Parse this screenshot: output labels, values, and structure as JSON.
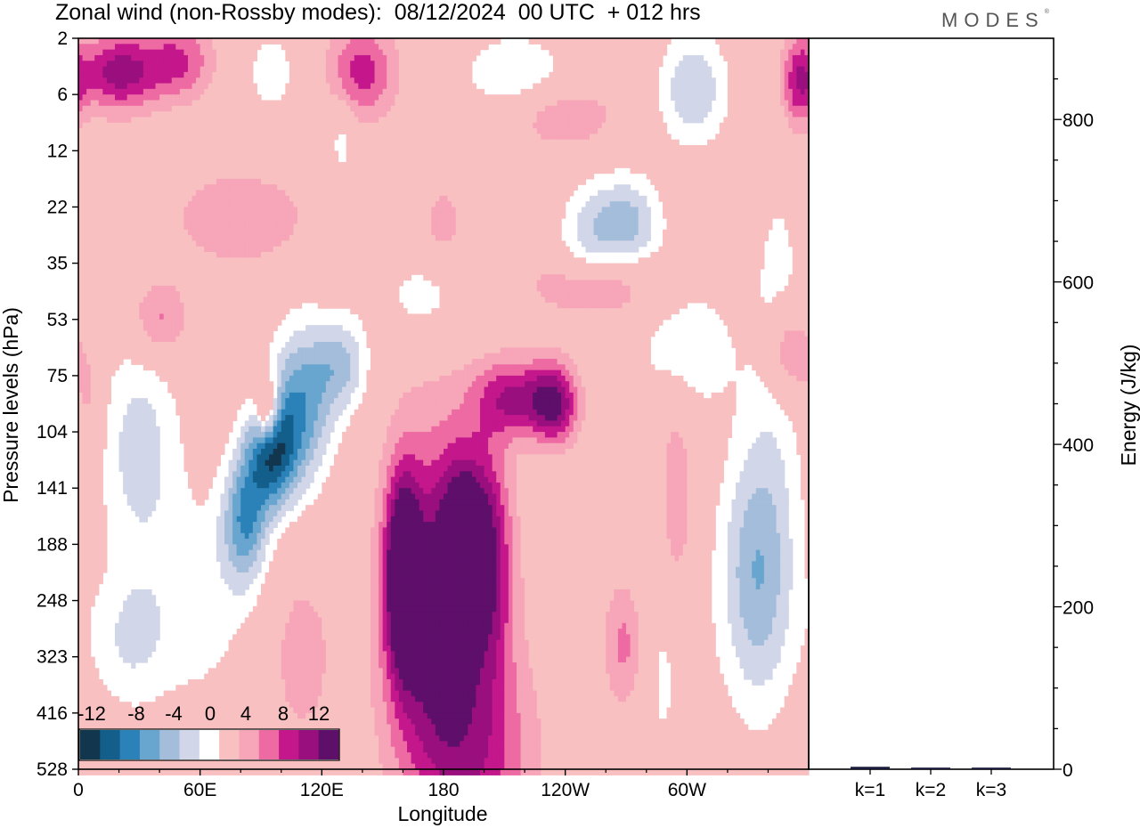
{
  "header": {
    "title": "Zonal wind (non-Rossby modes):  08/12/2024  00 UTC  + 012 hrs",
    "brand": "MODES"
  },
  "colors": {
    "neg": [
      "#13364f",
      "#135e8a",
      "#2b82b8",
      "#68a5cf",
      "#a3bdda",
      "#d2d6e9"
    ],
    "zero": "#ffffff",
    "pos": [
      "#f8c0c0",
      "#f7a5b8",
      "#ee6aa3",
      "#c5178c",
      "#9a0f7e",
      "#5e0f6a"
    ],
    "frame": "#000000"
  },
  "chart_data": [
    {
      "type": "heatmap",
      "title": "Zonal wind (non-Rossby modes):  08/12/2024  00 UTC  + 012 hrs",
      "xlabel": "Longitude",
      "ylabel": "Pressure levels (hPa)",
      "x_ticks": [
        "0",
        "60E",
        "120E",
        "180",
        "120W",
        "60W"
      ],
      "x_tick_values": [
        0,
        60,
        120,
        180,
        240,
        300
      ],
      "xlim": [
        0,
        360
      ],
      "y_ticks": [
        "2",
        "6",
        "12",
        "22",
        "35",
        "53",
        "75",
        "104",
        "141",
        "188",
        "248",
        "323",
        "416",
        "528"
      ],
      "colorbar": {
        "labels": [
          "-12",
          "-8",
          "-4",
          "0",
          "4",
          "8",
          "12"
        ],
        "levels": [
          -14,
          -12,
          -10,
          -8,
          -6,
          -4,
          -2,
          2,
          4,
          6,
          8,
          10,
          12,
          14
        ]
      },
      "features": [
        {
          "lon": 95,
          "lev": 7.4,
          "a": -12,
          "sx": 9,
          "sy": 0.7
        },
        {
          "lon": 110,
          "lev": 6.5,
          "a": -9,
          "sx": 11,
          "sy": 1.0
        },
        {
          "lon": 82,
          "lev": 8.6,
          "a": -9,
          "sx": 8,
          "sy": 0.8
        },
        {
          "lon": 130,
          "lev": 5.8,
          "a": -6,
          "sx": 9,
          "sy": 0.6
        },
        {
          "lon": 30,
          "lev": 7.3,
          "a": -5,
          "sx": 14,
          "sy": 1.4
        },
        {
          "lon": 25,
          "lev": 10.7,
          "a": -4,
          "sx": 14,
          "sy": 0.9
        },
        {
          "lon": 60,
          "lev": 10.0,
          "a": -3,
          "sx": 18,
          "sy": 1.4
        },
        {
          "lon": 335,
          "lev": 9.5,
          "a": -8,
          "sx": 13,
          "sy": 1.7
        },
        {
          "lon": 345,
          "lev": 5.0,
          "a": -3,
          "sx": 10,
          "sy": 2.0
        },
        {
          "lon": 303,
          "lev": 0.9,
          "a": -6,
          "sx": 12,
          "sy": 0.7
        },
        {
          "lon": 270,
          "lev": 3.3,
          "a": -7,
          "sx": 12,
          "sy": 0.6
        },
        {
          "lon": 250,
          "lev": 3.6,
          "a": -4,
          "sx": 10,
          "sy": 0.7
        },
        {
          "lon": 95,
          "lev": 0.6,
          "a": -3,
          "sx": 10,
          "sy": 0.6
        },
        {
          "lon": 215,
          "lev": 0.6,
          "a": -4,
          "sx": 18,
          "sy": 0.5
        },
        {
          "lon": 170,
          "lev": 4.6,
          "a": -3,
          "sx": 16,
          "sy": 0.6
        },
        {
          "lon": 300,
          "lev": 5.5,
          "a": -4,
          "sx": 16,
          "sy": 0.8
        },
        {
          "lon": 285,
          "lev": 11.0,
          "a": -3,
          "sx": 14,
          "sy": 1.5
        },
        {
          "lon": 130,
          "lev": 1.8,
          "a": -3,
          "sx": 5,
          "sy": 0.6
        },
        {
          "lon": 160,
          "lev": 9.5,
          "a": 13,
          "sx": 6,
          "sy": 1.2
        },
        {
          "lon": 175,
          "lev": 9.8,
          "a": 8,
          "sx": 16,
          "sy": 2.2
        },
        {
          "lon": 190,
          "lev": 8.8,
          "a": 9,
          "sx": 8,
          "sy": 1.0
        },
        {
          "lon": 203,
          "lev": 9.2,
          "a": 7,
          "sx": 8,
          "sy": 1.4
        },
        {
          "lon": 185,
          "lev": 11.5,
          "a": 5,
          "sx": 22,
          "sy": 1.8
        },
        {
          "lon": 215,
          "lev": 6.4,
          "a": 8,
          "sx": 14,
          "sy": 0.5
        },
        {
          "lon": 235,
          "lev": 6.5,
          "a": 9,
          "sx": 8,
          "sy": 0.5
        },
        {
          "lon": 270,
          "lev": 10.8,
          "a": 6,
          "sx": 8,
          "sy": 0.9
        },
        {
          "lon": 295,
          "lev": 8.3,
          "a": 4,
          "sx": 6,
          "sy": 1.5
        },
        {
          "lon": 350,
          "lev": 5.6,
          "a": 6,
          "sx": 8,
          "sy": 0.6
        },
        {
          "lon": 20,
          "lev": 0.6,
          "a": 9,
          "sx": 14,
          "sy": 0.5
        },
        {
          "lon": 50,
          "lev": 0.4,
          "a": 6,
          "sx": 12,
          "sy": 0.5
        },
        {
          "lon": 140,
          "lev": 0.6,
          "a": 7,
          "sx": 12,
          "sy": 0.6
        },
        {
          "lon": 355,
          "lev": 0.8,
          "a": 7,
          "sx": 6,
          "sy": 0.6
        },
        {
          "lon": 93,
          "lev": 6.6,
          "a": 9,
          "sx": 4,
          "sy": 0.4
        },
        {
          "lon": 40,
          "lev": 5.0,
          "a": 5,
          "sx": 10,
          "sy": 0.5
        },
        {
          "lon": 80,
          "lev": 3.2,
          "a": 4,
          "sx": 24,
          "sy": 0.6
        },
        {
          "lon": 255,
          "lev": 4.4,
          "a": 5,
          "sx": 22,
          "sy": 0.4
        },
        {
          "lon": 200,
          "lev": 13.0,
          "a": 4,
          "sx": 20,
          "sy": 1.2
        },
        {
          "lon": 240,
          "lev": 1.4,
          "a": 4,
          "sx": 18,
          "sy": 0.4
        },
        {
          "lon": 180,
          "lev": 3.3,
          "a": 3,
          "sx": 8,
          "sy": 0.5
        },
        {
          "lon": 5,
          "lev": 6.5,
          "a": 3,
          "sx": 5,
          "sy": 0.8
        },
        {
          "lon": 110,
          "lev": 11.0,
          "a": 3,
          "sx": 12,
          "sy": 1.2
        }
      ]
    },
    {
      "type": "bar",
      "ylabel": "Energy (J/kg)",
      "categories": [
        "k=1",
        "k=2",
        "k=3"
      ],
      "values": [
        3,
        2,
        2
      ],
      "y_ticks": [
        0,
        200,
        400,
        600,
        800
      ],
      "ylim": [
        0,
        900
      ],
      "bar_color": "#1a1a3e"
    }
  ]
}
